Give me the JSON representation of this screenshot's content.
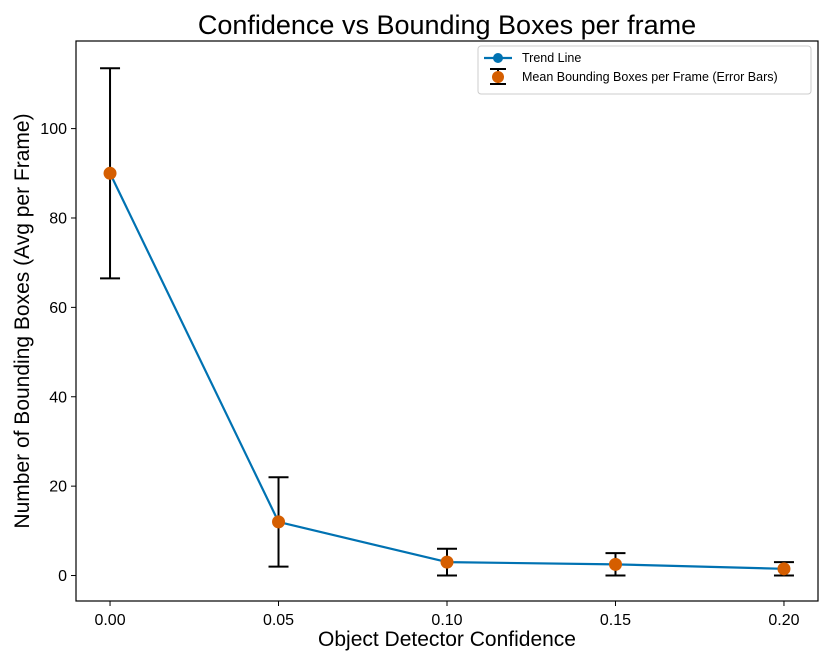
{
  "chart_data": {
    "type": "line",
    "title": "Confidence vs Bounding Boxes per frame",
    "xlabel": "Object Detector Confidence",
    "ylabel": "Number of Bounding Boxes (Avg per Frame)",
    "x": [
      0.0,
      0.05,
      0.1,
      0.15,
      0.2
    ],
    "x_tick_labels": [
      "0.00",
      "0.05",
      "0.10",
      "0.15",
      "0.20"
    ],
    "y_ticks": [
      0,
      20,
      40,
      60,
      80,
      100
    ],
    "y_tick_labels": [
      "0",
      "20",
      "40",
      "60",
      "80",
      "100"
    ],
    "xlim": [
      -0.0101,
      0.2101
    ],
    "ylim": [
      -5.7,
      119.6
    ],
    "grid": false,
    "legend_position": "top-right",
    "series": [
      {
        "name": "Trend Line",
        "kind": "line-with-markers",
        "color": "#0072b2",
        "values": [
          90,
          12,
          3,
          2.5,
          1.5
        ]
      },
      {
        "name": "Mean Bounding Boxes per Frame (Error Bars)",
        "kind": "errorbar",
        "color": "#d55e00",
        "errorbar_color": "#000000",
        "values": [
          90,
          12,
          3,
          2.5,
          1.5
        ],
        "error_low": [
          66.5,
          2,
          0,
          0,
          0
        ],
        "error_high": [
          113.5,
          22,
          6,
          5,
          3
        ]
      }
    ]
  }
}
